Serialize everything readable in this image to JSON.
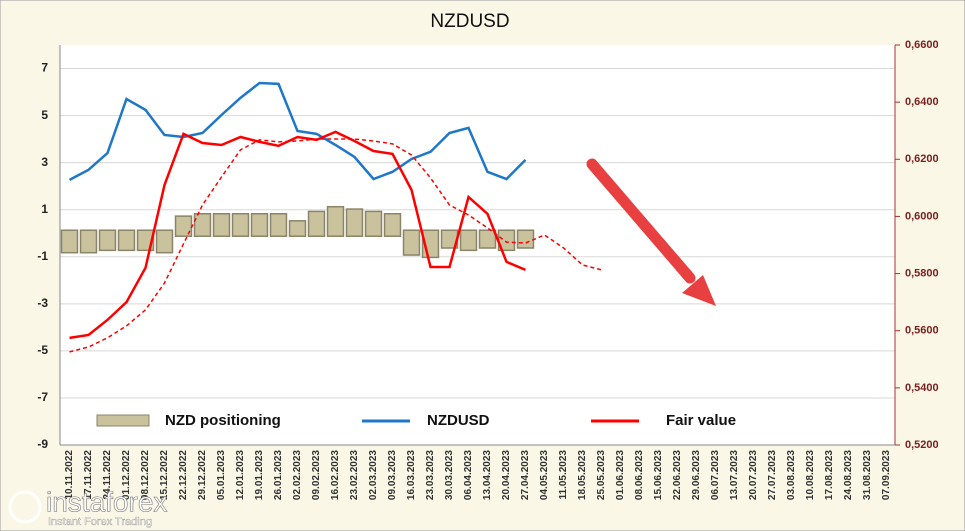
{
  "chart_data": {
    "type": "combo",
    "title": "NZDUSD",
    "categories": [
      "10.11.2022",
      "17.11.2022",
      "24.11.2022",
      "01.12.2022",
      "08.12.2022",
      "15.12.2022",
      "22.12.2022",
      "29.12.2022",
      "05.01.2023",
      "12.01.2023",
      "19.01.2023",
      "26.01.2023",
      "02.02.2023",
      "09.02.2023",
      "16.02.2023",
      "23.02.2023",
      "02.03.2023",
      "09.03.2023",
      "16.03.2023",
      "23.03.2023",
      "30.03.2023",
      "06.04.2023",
      "13.04.2023",
      "20.04.2023",
      "27.04.2023",
      "04.05.2023",
      "11.05.2023",
      "18.05.2023",
      "25.05.2023",
      "01.06.2023",
      "08.06.2023",
      "15.06.2023",
      "22.06.2023",
      "29.06.2023",
      "06.07.2023",
      "13.07.2023",
      "20.07.2023",
      "27.07.2023",
      "03.08.2023",
      "10.08.2023",
      "17.08.2023",
      "24.08.2023",
      "31.08.2023",
      "07.09.2023"
    ],
    "ylim": [
      -9,
      8
    ],
    "yticks": [
      -9,
      -7,
      -5,
      -3,
      -1,
      1,
      3,
      5,
      7
    ],
    "grid": true,
    "y2lim": [
      0.52,
      0.66
    ],
    "y2ticks": [
      {
        "value": 0.52,
        "label": "0,5200"
      },
      {
        "value": 0.54,
        "label": "0,5400"
      },
      {
        "value": 0.56,
        "label": "0,5600"
      },
      {
        "value": 0.58,
        "label": "0,5800"
      },
      {
        "value": 0.6,
        "label": "0,6000"
      },
      {
        "value": 0.62,
        "label": "0,6200"
      },
      {
        "value": 0.64,
        "label": "0,6400"
      },
      {
        "value": 0.66,
        "label": "0,6600"
      }
    ],
    "series": [
      {
        "name": "NZD positioning",
        "kind": "bar",
        "color": "#c9c29c",
        "axis": "y",
        "values": [
          -0.7,
          -0.7,
          -0.6,
          -0.6,
          -0.6,
          -0.7,
          0.6,
          0.7,
          0.7,
          0.7,
          0.7,
          0.7,
          0.4,
          0.8,
          1.0,
          0.9,
          0.8,
          0.7,
          -0.8,
          -0.9,
          -0.5,
          -0.6,
          -0.5,
          -0.6,
          -0.5,
          null,
          null,
          null,
          null,
          null,
          null,
          null,
          null,
          null,
          null,
          null,
          null,
          null,
          null,
          null,
          null,
          null,
          null,
          null
        ]
      },
      {
        "name": "NZDUSD",
        "kind": "line",
        "color": "#1f77c8",
        "axis": "y2",
        "values": [
          0.6128,
          0.6163,
          0.6222,
          0.6411,
          0.6373,
          0.6285,
          0.6278,
          0.6292,
          0.6355,
          0.6415,
          0.6467,
          0.6464,
          0.6299,
          0.6289,
          0.625,
          0.6208,
          0.6131,
          0.6156,
          0.6201,
          0.6226,
          0.6292,
          0.631,
          0.6156,
          0.6131,
          0.6198,
          null,
          null,
          null,
          null,
          null,
          null,
          null,
          null,
          null,
          null,
          null,
          null,
          null,
          null,
          null,
          null,
          null,
          null,
          null
        ]
      },
      {
        "name": "Fair value",
        "kind": "line",
        "color": "#ff0000",
        "axis": "y2",
        "values": [
          0.5575,
          0.5585,
          0.5638,
          0.57,
          0.582,
          0.611,
          0.6289,
          0.6257,
          0.625,
          0.6278,
          0.6261,
          0.6247,
          0.6278,
          0.6268,
          0.6296,
          0.6264,
          0.6229,
          0.6219,
          0.6093,
          0.5823,
          0.5823,
          0.6068,
          0.6009,
          0.5841,
          0.5813,
          null,
          null,
          null,
          null,
          null,
          null,
          null,
          null,
          null,
          null,
          null,
          null,
          null,
          null,
          null,
          null,
          null,
          null,
          null
        ]
      },
      {
        "kind": "dashed",
        "color": "#ff0000",
        "axis": "y2",
        "values": [
          0.5526,
          0.5543,
          0.5575,
          0.5617,
          0.5673,
          0.5767,
          0.5904,
          0.604,
          0.6138,
          0.6233,
          0.6268,
          0.6261,
          0.6264,
          0.6271,
          0.6271,
          0.6271,
          0.6264,
          0.6254,
          0.6215,
          0.6135,
          0.604,
          0.6005,
          0.596,
          0.591,
          0.5907,
          0.5935,
          0.589,
          0.583,
          0.5813,
          null,
          null,
          null,
          null,
          null,
          null,
          null,
          null,
          null,
          null,
          null,
          null,
          null,
          null,
          null
        ]
      }
    ]
  },
  "watermark": {
    "brand": "instaforex",
    "tagline": "Instant Forex Trading"
  }
}
